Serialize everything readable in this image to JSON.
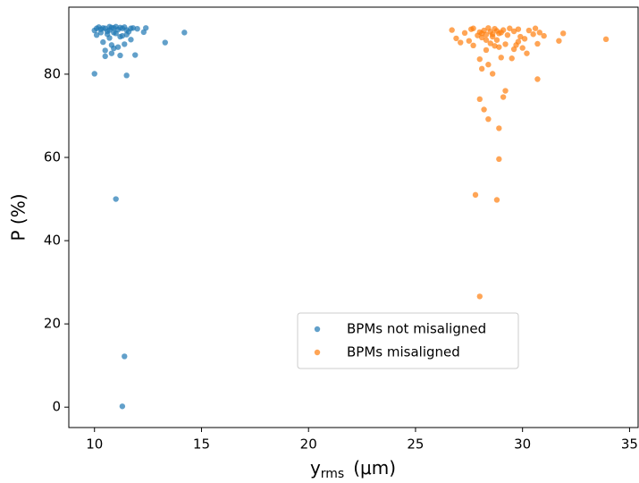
{
  "chart_data": {
    "type": "scatter",
    "xlabel": {
      "main": "y",
      "sub": "rms",
      "unit": "(μm)"
    },
    "ylabel": "P  (%)",
    "xlim": [
      8.8,
      35.4
    ],
    "xticks": [
      10,
      15,
      20,
      25,
      30,
      35
    ],
    "ylim": [
      -4.9,
      96.1
    ],
    "yticks": [
      0,
      20,
      40,
      60,
      80
    ],
    "grid": false,
    "legend_loc": "lower center",
    "opacity": 0.7,
    "series": [
      {
        "name": "BPMs not misaligned",
        "color": "#1f77b4",
        "x": [
          10.0,
          11.0,
          11.4,
          11.3,
          11.5,
          10.5,
          10.8,
          11.2,
          11.9,
          10.5,
          10.9,
          11.1,
          10.8,
          11.4,
          10.4,
          13.3,
          11.7,
          10.7,
          11.2,
          10.1,
          10.6,
          11.0,
          11.5,
          12.3,
          14.2,
          10.0,
          10.3,
          10.5,
          10.7,
          10.9,
          11.1,
          11.3,
          11.5,
          11.7,
          12.4,
          10.2,
          10.4,
          10.8,
          11.0,
          11.2,
          11.4,
          10.6,
          11.6,
          12.0,
          10.9,
          11.3,
          10.3,
          11.8,
          10.1,
          10.7
        ],
        "y": [
          80.1,
          50.0,
          12.2,
          0.2,
          79.7,
          84.3,
          85.0,
          84.5,
          84.6,
          85.7,
          86.2,
          86.5,
          87.0,
          87.2,
          87.7,
          87.6,
          88.3,
          88.7,
          89.0,
          89.4,
          89.6,
          89.8,
          89.5,
          90.1,
          90.0,
          90.5,
          90.8,
          91.0,
          90.6,
          91.1,
          90.7,
          91.0,
          90.6,
          91.0,
          91.1,
          91.3,
          91.1,
          91.2,
          91.4,
          91.2,
          91.3,
          90.3,
          90.2,
          90.9,
          90.0,
          89.2,
          90.0,
          91.1,
          91.0,
          91.4
        ]
      },
      {
        "name": "BPMs misaligned",
        "color": "#ff7f0e",
        "x": [
          28.0,
          28.8,
          27.8,
          28.9,
          28.9,
          28.4,
          28.2,
          28.0,
          29.1,
          29.2,
          30.7,
          28.6,
          28.1,
          28.4,
          28.0,
          29.0,
          29.5,
          30.2,
          28.3,
          29.6,
          28.9,
          27.7,
          29.2,
          30.7,
          27.1,
          28.5,
          29.8,
          31.7,
          33.9,
          26.9,
          28.1,
          28.8,
          30.1,
          31.0,
          27.9,
          28.3,
          28.6,
          29.3,
          29.9,
          30.5,
          31.9,
          27.3,
          28.0,
          28.5,
          28.9,
          29.6,
          30.8,
          26.7,
          27.6,
          28.2,
          28.7,
          29.1,
          29.8,
          30.6,
          27.7,
          28.4,
          28.8,
          29.4,
          30.3,
          28.1,
          28.6,
          29.0,
          28.3,
          27.5,
          29.7,
          28.7,
          30.0
        ],
        "y": [
          26.6,
          49.8,
          51.0,
          59.6,
          67.0,
          69.2,
          71.5,
          74.0,
          74.5,
          76.0,
          78.8,
          80.1,
          81.3,
          82.3,
          83.6,
          84.0,
          83.8,
          85.0,
          85.8,
          86.0,
          86.5,
          86.9,
          87.2,
          87.3,
          87.6,
          87.4,
          87.8,
          88.0,
          88.4,
          88.6,
          88.8,
          88.2,
          88.5,
          89.2,
          89.3,
          89.5,
          89.0,
          89.4,
          89.0,
          89.6,
          89.8,
          89.9,
          90.1,
          90.2,
          89.8,
          90.3,
          90.0,
          90.6,
          90.8,
          90.5,
          90.9,
          90.6,
          90.8,
          91.0,
          91.0,
          91.1,
          90.4,
          91.0,
          90.5,
          89.8,
          89.6,
          90.0,
          88.2,
          88.0,
          87.0,
          86.8,
          86.3
        ]
      }
    ]
  }
}
